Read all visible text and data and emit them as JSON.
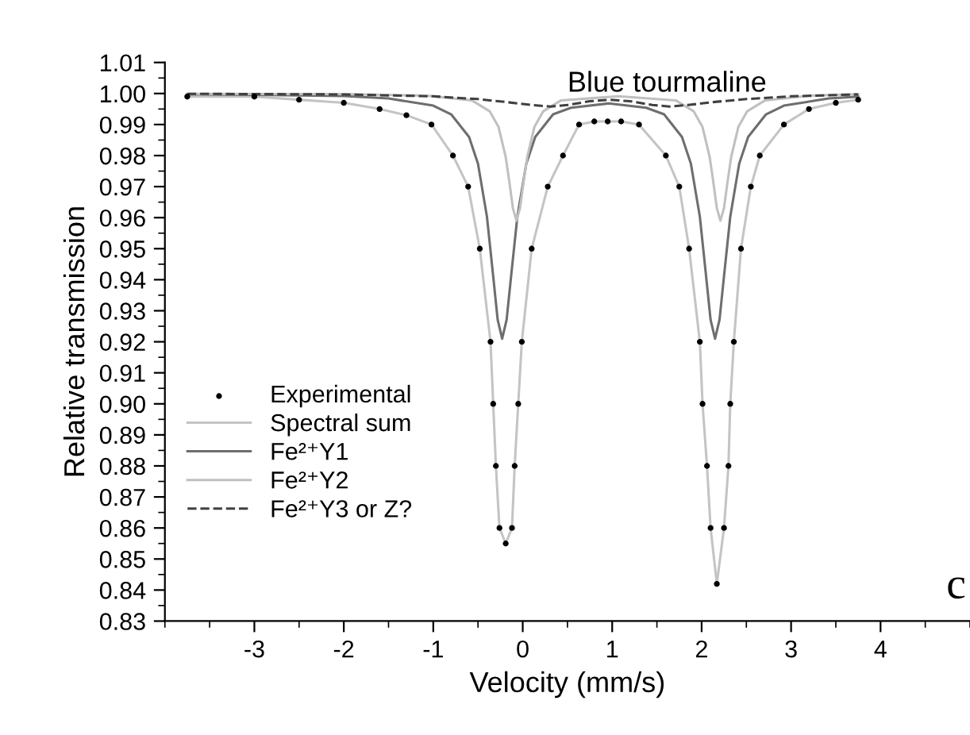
{
  "chart_data": {
    "type": "line",
    "title": "Blue tourmaline",
    "xlabel": "Velocity (mm/s)",
    "ylabel": "Relative transmission",
    "xlim": [
      -4,
      5
    ],
    "ylim": [
      0.83,
      1.01
    ],
    "xticks": [
      -3,
      -2,
      -1,
      0,
      1,
      2,
      3,
      4
    ],
    "yticks": [
      {
        "value": 0.83,
        "label": "0.83"
      },
      {
        "value": 0.84,
        "label": "0.84"
      },
      {
        "value": 0.85,
        "label": "0.85"
      },
      {
        "value": 0.86,
        "label": "0.86"
      },
      {
        "value": 0.87,
        "label": "0.87"
      },
      {
        "value": 0.88,
        "label": "0.88"
      },
      {
        "value": 0.89,
        "label": "0.89"
      },
      {
        "value": 0.9,
        "label": "0.90"
      },
      {
        "value": 0.91,
        "label": "0.91"
      },
      {
        "value": 0.92,
        "label": "0.92"
      },
      {
        "value": 0.93,
        "label": "0.93"
      },
      {
        "value": 0.94,
        "label": "0.94"
      },
      {
        "value": 0.95,
        "label": "0.95"
      },
      {
        "value": 0.96,
        "label": "0.96"
      },
      {
        "value": 0.97,
        "label": "0.97"
      },
      {
        "value": 0.98,
        "label": "0.98"
      },
      {
        "value": 0.99,
        "label": "0.99"
      },
      {
        "value": 1.0,
        "label": "1.00"
      },
      {
        "value": 1.01,
        "label": "1.01"
      }
    ],
    "grid": false,
    "legend": "left",
    "annotations": [
      "c"
    ],
    "series": [
      {
        "name": "Experimental",
        "type": "scatter",
        "marker": "circle",
        "color": "#000000",
        "x": [
          -3.75,
          -3,
          -2.5,
          -2,
          -1.6,
          -1.3,
          -1.02,
          -0.78,
          -0.61,
          -0.48,
          -0.36,
          -0.33,
          -0.3,
          -0.26,
          -0.19,
          -0.12,
          -0.09,
          -0.05,
          -0.01,
          0.1,
          0.28,
          0.45,
          0.63,
          0.8,
          0.95,
          1.1,
          1.3,
          1.6,
          1.75,
          1.86,
          1.98,
          2.01,
          2.06,
          2.1,
          2.17,
          2.25,
          2.3,
          2.32,
          2.36,
          2.44,
          2.55,
          2.65,
          2.92,
          3.2,
          3.5,
          3.75
        ],
        "values": [
          0.999,
          0.999,
          0.998,
          0.997,
          0.995,
          0.993,
          0.99,
          0.98,
          0.97,
          0.95,
          0.92,
          0.9,
          0.88,
          0.86,
          0.855,
          0.86,
          0.88,
          0.9,
          0.92,
          0.95,
          0.97,
          0.98,
          0.99,
          0.991,
          0.991,
          0.991,
          0.99,
          0.98,
          0.97,
          0.95,
          0.92,
          0.9,
          0.88,
          0.86,
          0.842,
          0.86,
          0.88,
          0.9,
          0.92,
          0.95,
          0.97,
          0.98,
          0.99,
          0.995,
          0.997,
          0.998
        ]
      },
      {
        "name": "Spectral sum",
        "color": "#c4c4c4",
        "x": [
          -3.75,
          -3,
          -2.5,
          -2,
          -1.6,
          -1.3,
          -1.02,
          -0.78,
          -0.61,
          -0.48,
          -0.36,
          -0.33,
          -0.3,
          -0.26,
          -0.19,
          -0.12,
          -0.09,
          -0.05,
          -0.01,
          0.1,
          0.28,
          0.45,
          0.63,
          0.8,
          0.95,
          1.1,
          1.3,
          1.6,
          1.75,
          1.86,
          1.98,
          2.01,
          2.06,
          2.1,
          2.17,
          2.25,
          2.3,
          2.32,
          2.36,
          2.44,
          2.55,
          2.65,
          2.92,
          3.2,
          3.5,
          3.75
        ],
        "values": [
          0.999,
          0.999,
          0.998,
          0.997,
          0.995,
          0.993,
          0.99,
          0.98,
          0.97,
          0.95,
          0.92,
          0.9,
          0.88,
          0.86,
          0.855,
          0.86,
          0.88,
          0.9,
          0.92,
          0.95,
          0.97,
          0.98,
          0.99,
          0.991,
          0.991,
          0.991,
          0.99,
          0.98,
          0.97,
          0.95,
          0.92,
          0.9,
          0.88,
          0.86,
          0.842,
          0.86,
          0.88,
          0.9,
          0.92,
          0.95,
          0.97,
          0.98,
          0.99,
          0.995,
          0.997,
          0.998
        ]
      },
      {
        "name": "Fe²⁺Y1",
        "color": "#6e6e6e",
        "x": [
          -3.75,
          -3,
          -2,
          -1.5,
          -1,
          -0.8,
          -0.6,
          -0.5,
          -0.4,
          -0.33,
          -0.28,
          -0.23,
          -0.18,
          -0.13,
          -0.06,
          0.04,
          0.14,
          0.34,
          0.54,
          0.96,
          1.38,
          1.58,
          1.78,
          1.88,
          1.98,
          2.05,
          2.1,
          2.15,
          2.2,
          2.25,
          2.32,
          2.42,
          2.52,
          2.72,
          2.92,
          3.42,
          3.75
        ],
        "values": [
          0.9997,
          0.9996,
          0.9992,
          0.9984,
          0.9961,
          0.9933,
          0.986,
          0.9774,
          0.9603,
          0.9411,
          0.9271,
          0.921,
          0.9271,
          0.9411,
          0.9603,
          0.9774,
          0.986,
          0.9933,
          0.9954,
          0.9968,
          0.9954,
          0.9933,
          0.986,
          0.9774,
          0.9603,
          0.9411,
          0.9271,
          0.921,
          0.9271,
          0.9411,
          0.9603,
          0.9774,
          0.986,
          0.9933,
          0.9961,
          0.9984,
          0.999
        ]
      },
      {
        "name": "Fe²⁺Y2",
        "color": "#c0c0c0",
        "x": [
          -3.75,
          -2,
          -1.07,
          -0.57,
          -0.37,
          -0.27,
          -0.19,
          -0.15,
          -0.11,
          -0.07,
          -0.03,
          0.01,
          0.05,
          0.13,
          0.23,
          0.43,
          1.07,
          1.71,
          1.91,
          2.01,
          2.09,
          2.13,
          2.17,
          2.21,
          2.25,
          2.29,
          2.33,
          2.41,
          2.51,
          2.71,
          3.21,
          3.75
        ],
        "values": [
          0.9999,
          0.9998,
          0.9993,
          0.9978,
          0.9943,
          0.9892,
          0.9795,
          0.9716,
          0.9631,
          0.959,
          0.9631,
          0.9716,
          0.9795,
          0.9892,
          0.9943,
          0.9978,
          0.9991,
          0.9978,
          0.9943,
          0.9892,
          0.9795,
          0.9716,
          0.9631,
          0.959,
          0.9631,
          0.9716,
          0.9795,
          0.9892,
          0.9943,
          0.9978,
          0.9993,
          0.9998
        ]
      },
      {
        "name": "Fe²⁺Y3 or Z?",
        "line_style": "dashed",
        "color": "#404040",
        "x": [
          -3.75,
          -2,
          -1,
          -0.5,
          -0.2,
          0.1,
          0.31,
          0.5,
          0.75,
          0.97,
          1.2,
          1.45,
          1.64,
          1.85,
          2.15,
          2.5,
          3,
          3.75
        ],
        "values": [
          0.9999,
          0.9997,
          0.9991,
          0.9982,
          0.9973,
          0.9963,
          0.9958,
          0.9963,
          0.9975,
          0.998,
          0.9975,
          0.9963,
          0.9958,
          0.9963,
          0.9973,
          0.9982,
          0.9991,
          0.9997
        ]
      }
    ]
  }
}
